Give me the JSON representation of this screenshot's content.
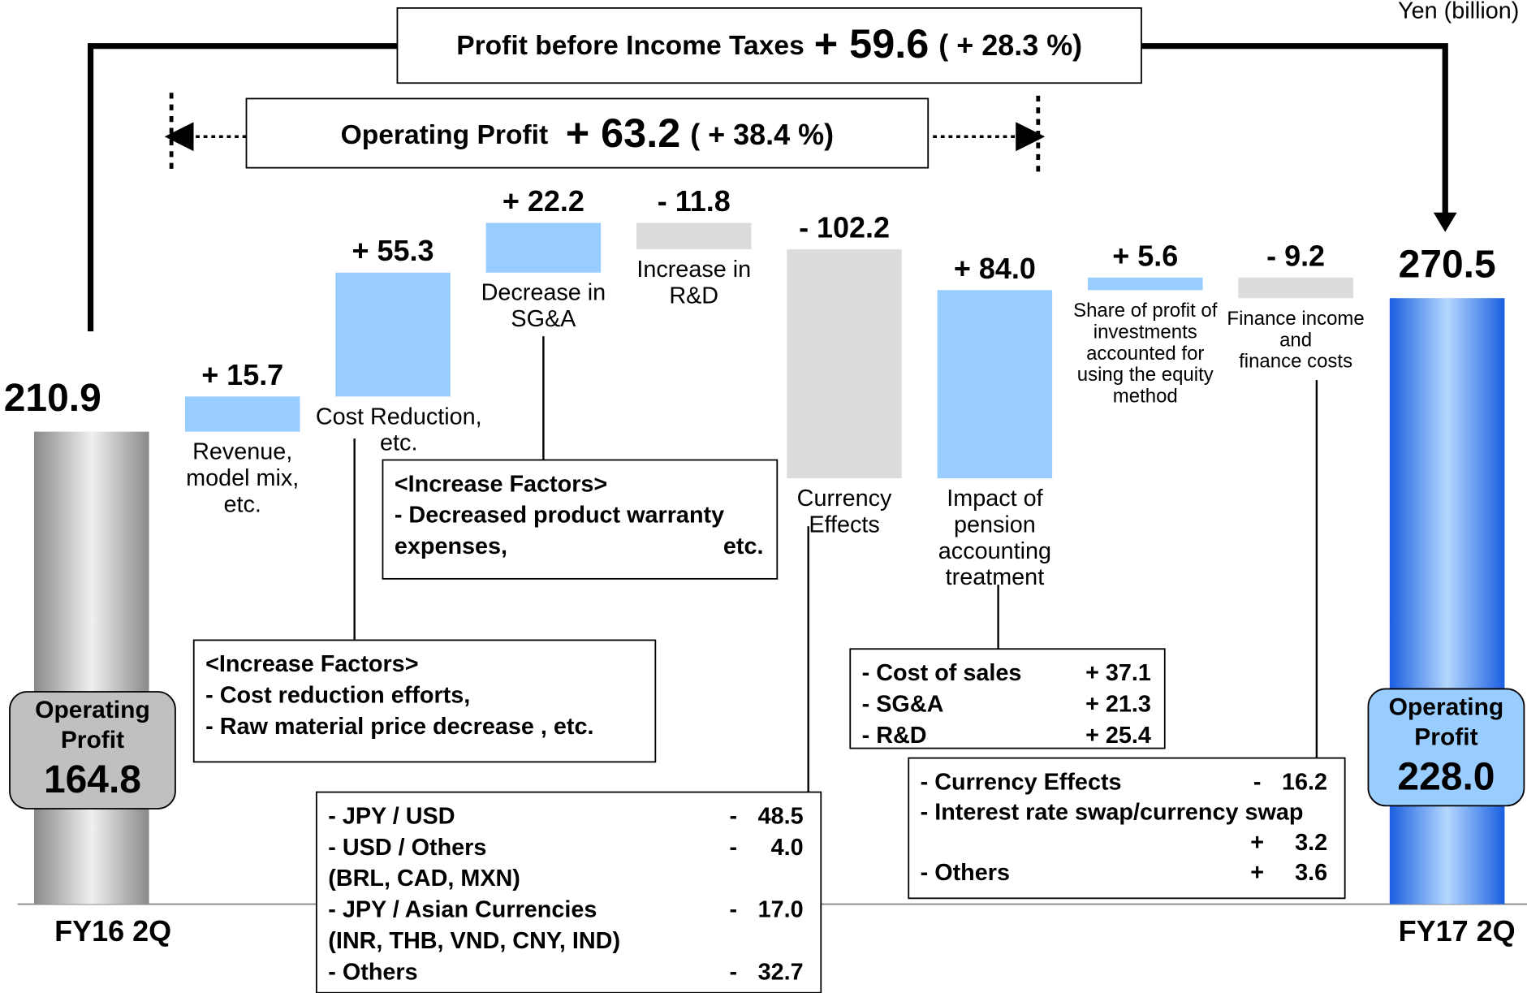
{
  "chart_data": {
    "type": "waterfall",
    "unit": "Yen (billion)",
    "header_boxes": [
      {
        "label": "Profit before Income Taxes",
        "value": "+ 59.6",
        "pct": "( + 28.3 %)"
      },
      {
        "label": "Operating Profit",
        "value": "+ 63.2",
        "pct": "( + 38.4 %)"
      }
    ],
    "start": {
      "label": "FY16 2Q",
      "value": 210.9,
      "op_label": [
        "Operating",
        "Profit"
      ],
      "op_value": 164.8
    },
    "end": {
      "label": "FY17 2Q",
      "value": 270.5,
      "op_label": [
        "Operating",
        "Profit"
      ],
      "op_value": 228,
      "op_value_label": "228.0"
    },
    "categories": [
      [
        "Revenue,",
        "model mix,",
        "etc."
      ],
      [
        "Cost Reduction,",
        "etc."
      ],
      [
        "Decrease in",
        "SG&A"
      ],
      [
        "Increase in",
        "R&D"
      ],
      [
        "Currency",
        "Effects"
      ],
      [
        "Impact of",
        "pension",
        "accounting",
        "treatment"
      ],
      [
        "Share of profit of",
        "investments",
        "accounted for",
        "using the equity",
        "method"
      ],
      [
        "Finance income",
        "and",
        "finance costs"
      ]
    ],
    "values": [
      15.7,
      55.3,
      22.2,
      -11.8,
      -102.2,
      84.0,
      5.6,
      -9.2
    ],
    "value_labels": [
      "+ 15.7",
      "+ 55.3",
      "+ 22.2",
      "- 11.8",
      "- 102.2",
      "+ 84.0",
      "+ 5.6",
      "- 9.2"
    ],
    "positive_color": "#99ccff",
    "negative_color": "#dcdcdc",
    "detail_boxes": [
      {
        "rows": [
          [
            "<Increase Factors>"
          ],
          [
            "- Decreased product warranty"
          ],
          [
            "  expenses,",
            "etc."
          ]
        ]
      },
      {
        "rows": [
          [
            "<Increase Factors>"
          ],
          [
            "- Cost reduction efforts,"
          ],
          [
            "- Raw material price decrease , etc."
          ]
        ]
      },
      {
        "rows": [
          [
            "- Cost of sales",
            "+ 37.1"
          ],
          [
            "- SG&A",
            "+ 21.3"
          ],
          [
            "- R&D",
            "+ 25.4"
          ]
        ]
      },
      {
        "rows": [
          [
            "- Currency Effects",
            "-",
            "16.2"
          ],
          [
            "- Interest rate swap/currency swap"
          ],
          [
            "",
            "+",
            "3.2"
          ],
          [
            "- Others",
            "+",
            "3.6"
          ]
        ]
      },
      {
        "rows": [
          [
            "- JPY / USD",
            "-",
            "48.5"
          ],
          [
            "- USD / Others",
            "-",
            "4.0"
          ],
          [
            "  (BRL, CAD, MXN)"
          ],
          [
            "- JPY / Asian Currencies",
            "-",
            "17.0"
          ],
          [
            "  (INR, THB, VND, CNY, IND)"
          ],
          [
            "- Others",
            "-",
            "32.7"
          ]
        ]
      }
    ]
  }
}
